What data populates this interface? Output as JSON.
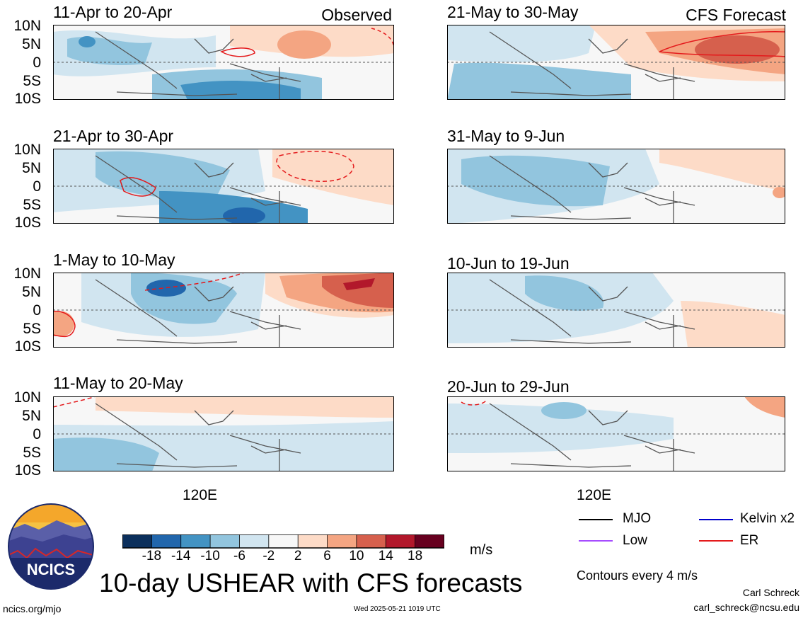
{
  "panels": [
    {
      "title": "11-Apr to 20-Apr",
      "source": "Observed"
    },
    {
      "title": "21-May to 30-May",
      "source": "CFS Forecast"
    },
    {
      "title": "21-Apr to 30-Apr",
      "source": ""
    },
    {
      "title": "31-May to 9-Jun",
      "source": ""
    },
    {
      "title": "1-May to 10-May",
      "source": ""
    },
    {
      "title": "10-Jun to 19-Jun",
      "source": ""
    },
    {
      "title": "11-May to 20-May",
      "source": ""
    },
    {
      "title": "20-Jun to 29-Jun",
      "source": ""
    }
  ],
  "lat_labels": [
    "10N",
    "5N",
    "0",
    "5S",
    "10S"
  ],
  "lon_label": "120E",
  "colorbar": {
    "ticks": [
      "-18",
      "-14",
      "-10",
      "-6",
      "-2",
      "2",
      "6",
      "10",
      "14",
      "18"
    ],
    "colors": [
      "#0b2f5c",
      "#2166ac",
      "#4393c3",
      "#92c5de",
      "#d1e5f0",
      "#f7f7f7",
      "#fddbc7",
      "#f4a582",
      "#d6604d",
      "#b2182b",
      "#67001f"
    ],
    "units": "m/s"
  },
  "title": "10-day USHEAR with CFS forecasts",
  "legend": [
    {
      "label": "MJO",
      "color": "#000000"
    },
    {
      "label": "Kelvin x2",
      "color": "#0000cc"
    },
    {
      "label": "Low",
      "color": "#a64dff"
    },
    {
      "label": "ER",
      "color": "#e41a1c"
    }
  ],
  "contour_note": "Contours every 4 m/s",
  "author": "Carl Schreck",
  "email": "carl_schreck@ncsu.edu",
  "url": "ncics.org/mjo",
  "timestamp": "Wed 2025-05-21 1019 UTC",
  "logo_text": "NCICS"
}
